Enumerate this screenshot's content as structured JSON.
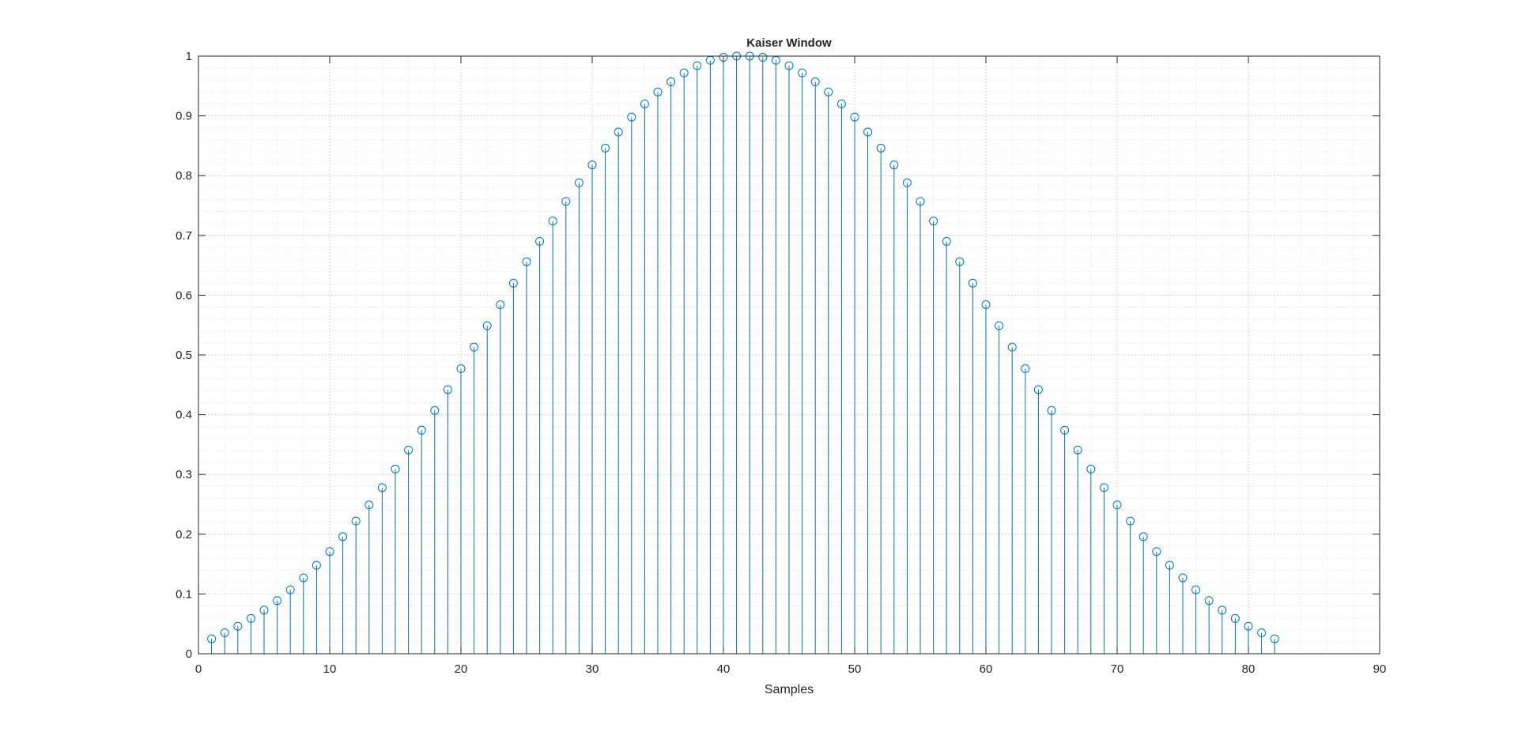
{
  "chart_data": {
    "type": "stem",
    "title": "Kaiser Window",
    "xlabel": "Samples",
    "ylabel": "",
    "xlim": [
      0,
      90
    ],
    "ylim": [
      0,
      1
    ],
    "xticks": [
      "0",
      "10",
      "20",
      "30",
      "40",
      "50",
      "60",
      "70",
      "80",
      "90"
    ],
    "yticks": [
      "0",
      "0.1",
      "0.2",
      "0.3",
      "0.4",
      "0.5",
      "0.6",
      "0.7",
      "0.8",
      "0.9",
      "1"
    ],
    "grid": true,
    "minor_grid": true,
    "series": [
      {
        "color": "#0072BD",
        "marker": "open-circle",
        "x": [
          1,
          2,
          3,
          4,
          5,
          6,
          7,
          8,
          9,
          10,
          11,
          12,
          13,
          14,
          15,
          16,
          17,
          18,
          19,
          20,
          21,
          22,
          23,
          24,
          25,
          26,
          27,
          28,
          29,
          30,
          31,
          32,
          33,
          34,
          35,
          36,
          37,
          38,
          39,
          40,
          41,
          42,
          43,
          44,
          45,
          46,
          47,
          48,
          49,
          50,
          51,
          52,
          53,
          54,
          55,
          56,
          57,
          58,
          59,
          60,
          61,
          62,
          63,
          64,
          65,
          66,
          67,
          68,
          69,
          70,
          71,
          72,
          73,
          74,
          75,
          76,
          77,
          78,
          79,
          80,
          81,
          82
        ],
        "values": [
          0.025,
          0.035,
          0.046,
          0.059,
          0.073,
          0.089,
          0.107,
          0.127,
          0.148,
          0.171,
          0.196,
          0.222,
          0.249,
          0.278,
          0.309,
          0.341,
          0.374,
          0.407,
          0.442,
          0.477,
          0.513,
          0.549,
          0.584,
          0.62,
          0.656,
          0.69,
          0.724,
          0.757,
          0.788,
          0.818,
          0.846,
          0.873,
          0.898,
          0.92,
          0.94,
          0.957,
          0.972,
          0.984,
          0.993,
          0.998,
          1.0,
          1.0,
          0.998,
          0.993,
          0.984,
          0.972,
          0.957,
          0.94,
          0.92,
          0.898,
          0.873,
          0.846,
          0.818,
          0.788,
          0.757,
          0.724,
          0.69,
          0.656,
          0.62,
          0.584,
          0.549,
          0.513,
          0.477,
          0.442,
          0.407,
          0.374,
          0.341,
          0.309,
          0.278,
          0.249,
          0.222,
          0.196,
          0.171,
          0.148,
          0.127,
          0.107,
          0.089,
          0.073,
          0.059,
          0.046,
          0.035,
          0.025
        ]
      }
    ]
  }
}
